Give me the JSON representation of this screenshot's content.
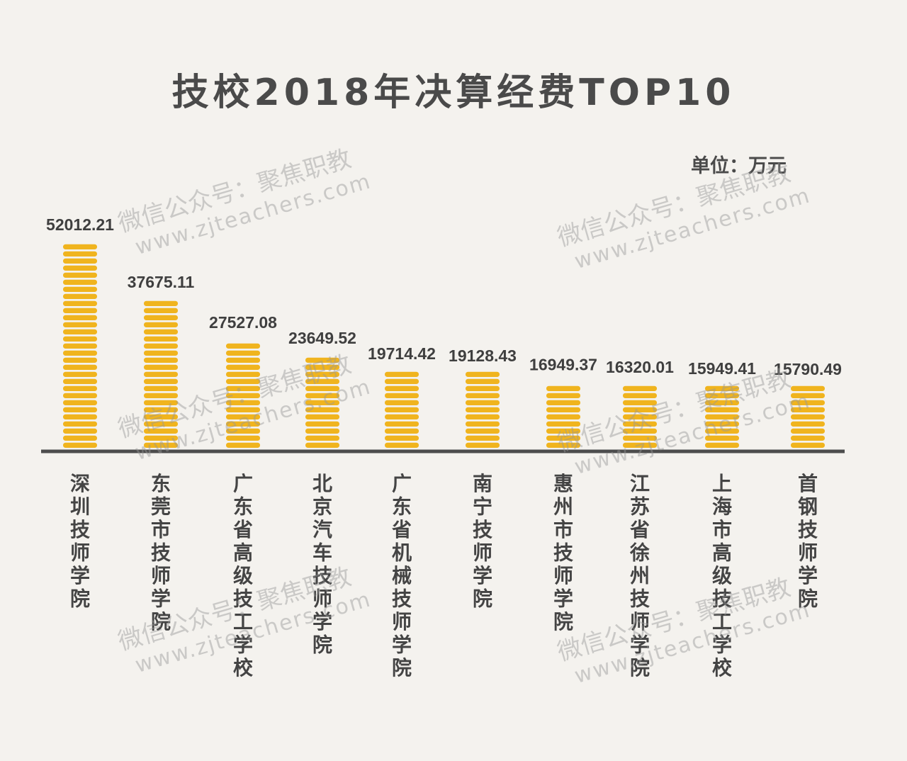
{
  "chart_data": {
    "type": "bar",
    "title": "技校2018年决算经费TOP10",
    "unit": "单位：万元",
    "categories": [
      "深圳技师学院",
      "东莞市技师学院",
      "广东省高级技工学校",
      "北京汽车技师学院",
      "广东省机械技师学院",
      "南宁技师学院",
      "惠州市技师学院",
      "江苏省徐州技师学院",
      "上海市高级技工学校",
      "首钢技师学院"
    ],
    "values": [
      52012.21,
      37675.11,
      27527.08,
      23649.52,
      19714.42,
      19128.43,
      16949.37,
      16320.01,
      15949.41,
      15790.49
    ],
    "value_labels": [
      "52012.21",
      "37675.11",
      "27527.08",
      "23649.52",
      "19714.42",
      "19128.43",
      "16949.37",
      "16320.01",
      "15949.41",
      "15790.49"
    ],
    "ylim": [
      0,
      52012.21
    ],
    "grid": false,
    "bar_color": "#f0b41e",
    "axis_color": "#4d4d4d"
  },
  "watermark": {
    "line1": "微信公众号：聚焦职教",
    "line2": "www.zjteachers.com"
  }
}
